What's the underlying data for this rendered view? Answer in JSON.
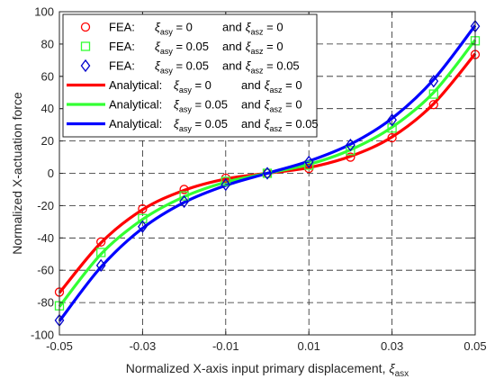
{
  "chart_data": {
    "type": "line",
    "xlabel": "Normalized X-axis input primary displacement, ξasx",
    "xlabel_main": "Normalized X-axis input primary displacement, ",
    "xlabel_symbol": "ξ",
    "xlabel_sub": "asx",
    "ylabel": "Normalized X-actuation force",
    "xlim": [
      -0.05,
      0.05
    ],
    "ylim": [
      -100,
      100
    ],
    "xticks": [
      -0.05,
      -0.03,
      -0.01,
      0.01,
      0.03,
      0.05
    ],
    "xtick_labels": [
      "-0.05",
      "-0.03",
      "-0.01",
      "0.01",
      "0.03",
      "0.05"
    ],
    "yticks": [
      -100,
      -80,
      -60,
      -40,
      -20,
      0,
      20,
      40,
      60,
      80,
      100
    ],
    "ytick_labels": [
      "-100",
      "-80",
      "-60",
      "-40",
      "-20",
      "0",
      "20",
      "40",
      "60",
      "80",
      "100"
    ],
    "grid": true,
    "grid_style": "dashed",
    "legend_position": "top-left",
    "series": [
      {
        "kind": "FEA",
        "marker": "circle",
        "color": "#ff0000",
        "legend": {
          "prefix": "FEA:",
          "v1": "= 0",
          "v2": "= 0"
        },
        "x": [
          -0.05,
          -0.04,
          -0.03,
          -0.02,
          -0.01,
          0,
          0.01,
          0.02,
          0.03,
          0.04,
          0.05
        ],
        "y": [
          -73.5,
          -42.5,
          -22,
          -10,
          -3,
          0,
          3,
          10,
          22,
          42.5,
          73.5
        ]
      },
      {
        "kind": "FEA",
        "marker": "square",
        "color": "#33ff33",
        "legend": {
          "prefix": "FEA:",
          "v1": "= 0.05",
          "v2": "= 0"
        },
        "x": [
          -0.05,
          -0.04,
          -0.03,
          -0.02,
          -0.01,
          0,
          0.01,
          0.02,
          0.03,
          0.04,
          0.05
        ],
        "y": [
          -82,
          -49,
          -28,
          -14,
          -5,
          0,
          5,
          14,
          28,
          49,
          82
        ]
      },
      {
        "kind": "FEA",
        "marker": "diamond",
        "color": "#0000cc",
        "legend": {
          "prefix": "FEA:",
          "v1": "= 0.05",
          "v2": "= 0.05"
        },
        "x": [
          -0.05,
          -0.04,
          -0.03,
          -0.02,
          -0.01,
          0,
          0.01,
          0.02,
          0.03,
          0.04,
          0.05
        ],
        "y": [
          -91,
          -57,
          -33,
          -17.5,
          -7,
          0,
          7,
          17.5,
          33,
          57,
          91
        ]
      },
      {
        "kind": "Analytical",
        "marker": "line",
        "color": "#ff0000",
        "legend": {
          "prefix": "Analytical:",
          "v1": "= 0",
          "v2": "= 0"
        },
        "x": [
          -0.05,
          -0.04,
          -0.03,
          -0.02,
          -0.01,
          0,
          0.01,
          0.02,
          0.03,
          0.04,
          0.05
        ],
        "y": [
          -74,
          -43,
          -22.5,
          -10.5,
          -3.5,
          0,
          3.5,
          10.5,
          22.5,
          43,
          74
        ]
      },
      {
        "kind": "Analytical",
        "marker": "line",
        "color": "#33ff33",
        "legend": {
          "prefix": "Analytical:",
          "v1": "= 0.05",
          "v2": "= 0"
        },
        "x": [
          -0.05,
          -0.04,
          -0.03,
          -0.02,
          -0.01,
          0,
          0.01,
          0.02,
          0.03,
          0.04,
          0.05
        ],
        "y": [
          -82.5,
          -50,
          -28.5,
          -14.5,
          -5.5,
          0,
          5.5,
          14.5,
          28.5,
          50,
          82.5
        ]
      },
      {
        "kind": "Analytical",
        "marker": "line",
        "color": "#0000ff",
        "legend": {
          "prefix": "Analytical:",
          "v1": "= 0.05",
          "v2": "= 0.05"
        },
        "x": [
          -0.05,
          -0.04,
          -0.03,
          -0.02,
          -0.01,
          0,
          0.01,
          0.02,
          0.03,
          0.04,
          0.05
        ],
        "y": [
          -91.5,
          -58,
          -34,
          -18,
          -7.5,
          0,
          7.5,
          18,
          34,
          58,
          91.5
        ]
      }
    ],
    "legend_symbol1": "ξ",
    "legend_sub1": "asy",
    "legend_connector": "and",
    "legend_symbol2": "ξ",
    "legend_sub2": "asz"
  }
}
